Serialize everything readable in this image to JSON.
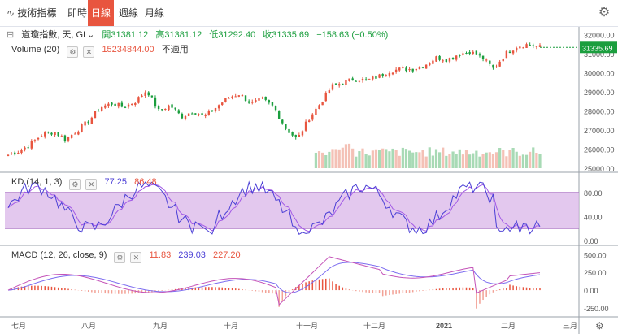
{
  "toolbar": {
    "tools_label": "技術指標",
    "tabs": [
      "即時",
      "日線",
      "週線",
      "月線"
    ],
    "active_tab": "日線"
  },
  "colors": {
    "up": "#e8553f",
    "down": "#1b9e3e",
    "kd_k": "#4b3fd6",
    "kd_d": "#a259e6",
    "kd_band": "#d9b5e8",
    "macd_line": "#c453b8",
    "signal_line": "#7d6df0",
    "hist": "#e8553f"
  },
  "main_legend": {
    "title": "道瓊指數, 天, GI",
    "open_label": "開",
    "open": "31381.12",
    "high_label": "高",
    "high": "31381.12",
    "low_label": "低",
    "low": "31292.40",
    "close_label": "收",
    "close": "31335.69",
    "change": "−158.63 (−0.50%)"
  },
  "volume_legend": {
    "label": "Volume (20)",
    "value": "15234844.00",
    "note": "不適用"
  },
  "kd_legend": {
    "label": "KD (14, 1, 3)",
    "k": "77.25",
    "d": "86.48"
  },
  "macd_legend": {
    "label": "MACD (12, 26, close, 9)",
    "hist": "11.83",
    "macd": "239.03",
    "signal": "227.20"
  },
  "last_price_tag": "31335.69",
  "chart_data": {
    "type": "candlestick",
    "price_ticks": [
      "32000.00",
      "31000.00",
      "30000.00",
      "29000.00",
      "28000.00",
      "27000.00",
      "26000.00",
      "25000.00"
    ],
    "price_ylim": [
      25000,
      32200
    ],
    "kd_ticks": [
      "80.00",
      "40.00",
      "0.00"
    ],
    "kd_band": [
      20,
      80
    ],
    "macd_ticks": [
      "500.00",
      "250.00",
      "0.00",
      "-250.00"
    ],
    "macd_ylim": [
      -330,
      560
    ],
    "x_labels": [
      "七月",
      "八月",
      "九月",
      "十月",
      "十一月",
      "十二月",
      "2021",
      "二月",
      "三月"
    ],
    "close_keypoints": [
      25700,
      25900,
      26300,
      26800,
      26900,
      26500,
      27000,
      27500,
      28200,
      28400,
      28200,
      28500,
      29100,
      28000,
      28300,
      27700,
      28000,
      27700,
      28200,
      28700,
      28900,
      28400,
      28600,
      28200,
      27100,
      26500,
      27600,
      28400,
      29300,
      29500,
      29700,
      29600,
      29800,
      30100,
      30200,
      30200,
      30400,
      30800,
      30700,
      31000,
      31100,
      30800,
      30200,
      31000,
      31400,
      31500,
      31350
    ]
  }
}
